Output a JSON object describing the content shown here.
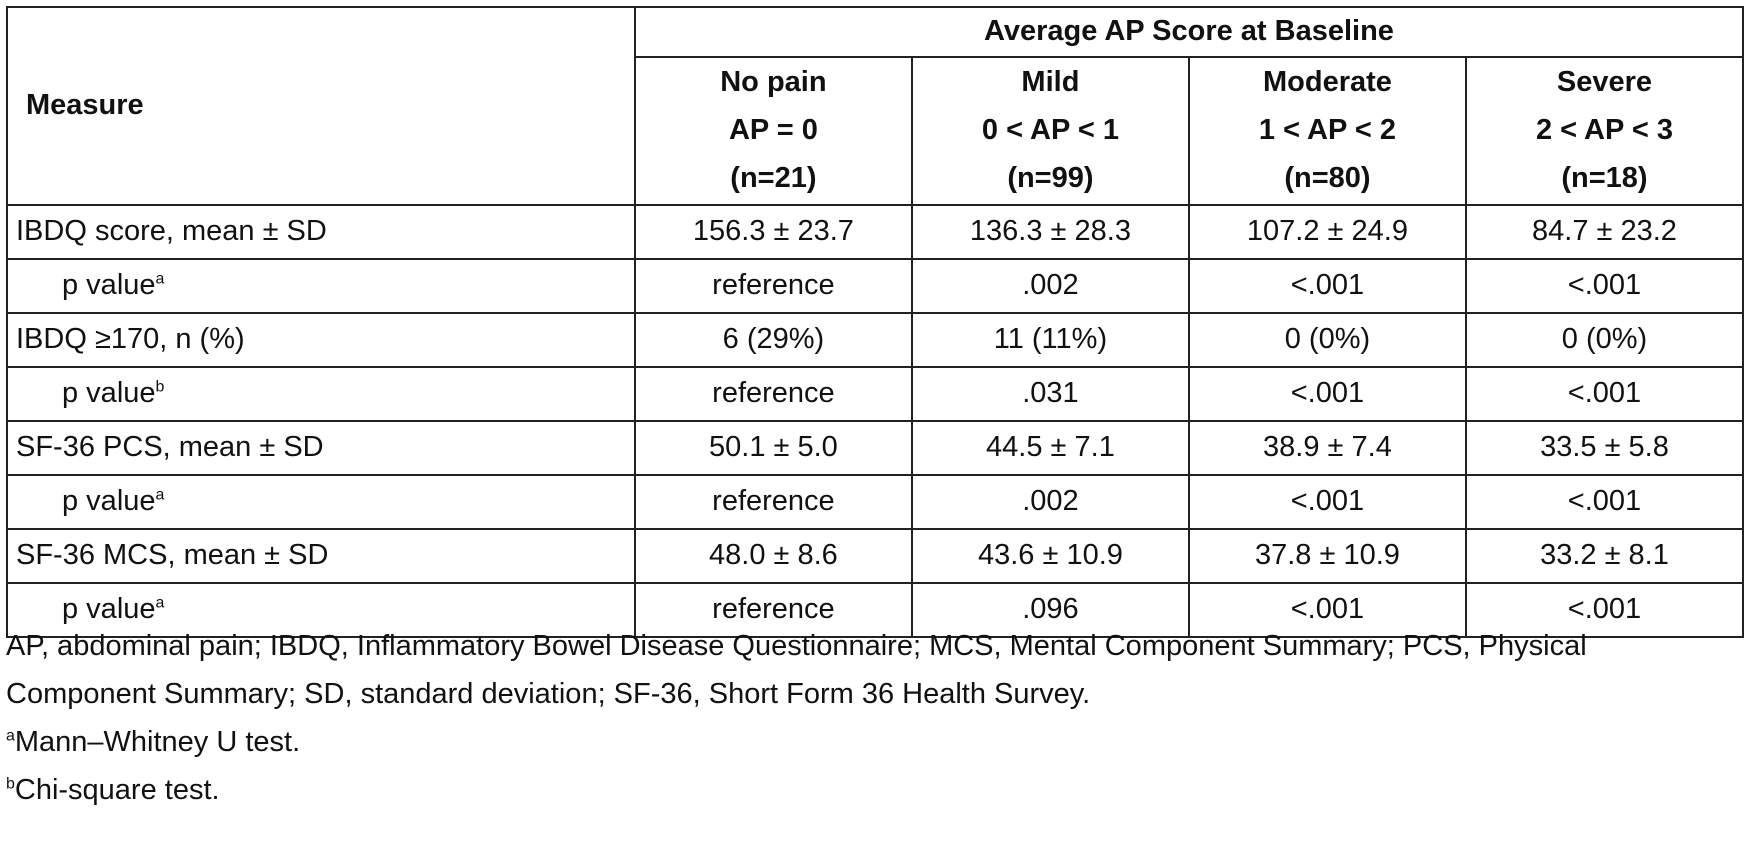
{
  "header": {
    "measure_label": "Measure",
    "span_title": "Average AP Score at Baseline",
    "groups": [
      {
        "name": "No pain",
        "range": "AP = 0",
        "n": "(n=21)"
      },
      {
        "name": "Mild",
        "range": "0 < AP < 1",
        "n": "(n=99)"
      },
      {
        "name": "Moderate",
        "range": "1 < AP < 2",
        "n": "(n=80)"
      },
      {
        "name": "Severe",
        "range": "2 < AP < 3",
        "n": "(n=18)"
      }
    ]
  },
  "rows": [
    {
      "label": "IBDQ score, mean ± SD",
      "sup": "",
      "indent": false,
      "values": [
        "156.3 ± 23.7",
        "136.3 ± 28.3",
        "107.2 ± 24.9",
        "84.7 ± 23.2"
      ]
    },
    {
      "label": "p value",
      "sup": "a",
      "indent": true,
      "values": [
        "reference",
        ".002",
        "<.001",
        "<.001"
      ]
    },
    {
      "label": "IBDQ ≥170, n (%)",
      "sup": "",
      "indent": false,
      "values": [
        "6 (29%)",
        "11 (11%)",
        "0 (0%)",
        "0 (0%)"
      ]
    },
    {
      "label": "p value",
      "sup": "b",
      "indent": true,
      "values": [
        "reference",
        ".031",
        "<.001",
        "<.001"
      ]
    },
    {
      "label": "SF-36 PCS, mean ± SD",
      "sup": "",
      "indent": false,
      "values": [
        "50.1 ± 5.0",
        "44.5 ± 7.1",
        "38.9 ± 7.4",
        "33.5 ± 5.8"
      ]
    },
    {
      "label": "p value",
      "sup": "a",
      "indent": true,
      "values": [
        "reference",
        ".002",
        "<.001",
        "<.001"
      ]
    },
    {
      "label": "SF-36 MCS, mean ± SD",
      "sup": "",
      "indent": false,
      "values": [
        "48.0 ± 8.6",
        "43.6 ± 10.9",
        "37.8 ± 10.9",
        "33.2 ± 8.1"
      ]
    },
    {
      "label": "p value",
      "sup": "a",
      "indent": true,
      "values": [
        "reference",
        ".096",
        "<.001",
        "<.001"
      ]
    }
  ],
  "footnotes": {
    "abbreviations": "AP, abdominal pain; IBDQ, Inflammatory Bowel Disease Questionnaire; MCS, Mental Component Summary; PCS, Physical Component Summary; SD, standard deviation; SF-36, Short Form 36 Health Survey.",
    "notes": [
      {
        "marker": "a",
        "text": "Mann–Whitney U test."
      },
      {
        "marker": "b",
        "text": "Chi-square test."
      }
    ]
  }
}
